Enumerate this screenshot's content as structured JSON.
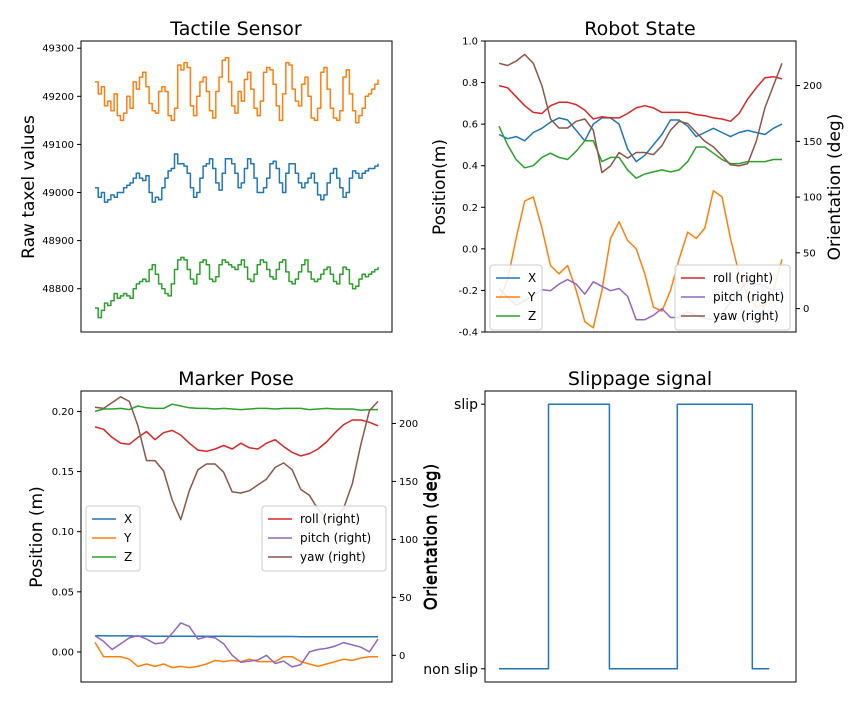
{
  "chart_data": [
    {
      "type": "line",
      "title": "Tactile Sensor",
      "ylabel": "Raw taxel values",
      "xlabel": "",
      "ylim": [
        48710,
        49315
      ],
      "yticks": [
        48800,
        48900,
        49000,
        49100,
        49200,
        49300
      ],
      "show_xticks": false,
      "step": true,
      "series": [
        {
          "color": "#ff7f0e",
          "values": [
            49230,
            49205,
            49220,
            49180,
            49190,
            49170,
            49205,
            49160,
            49150,
            49165,
            49200,
            49175,
            49230,
            49215,
            49240,
            49250,
            49220,
            49185,
            49170,
            49165,
            49210,
            49220,
            49210,
            49160,
            49150,
            49175,
            49265,
            49255,
            49270,
            49260,
            49180,
            49160,
            49200,
            49230,
            49240,
            49210,
            49170,
            49155,
            49210,
            49240,
            49275,
            49280,
            49230,
            49180,
            49165,
            49210,
            49190,
            49235,
            49250,
            49215,
            49175,
            49160,
            49190,
            49250,
            49260,
            49255,
            49225,
            49180,
            49150,
            49205,
            49270,
            49265,
            49215,
            49190,
            49180,
            49225,
            49240,
            49200,
            49155,
            49150,
            49175,
            49250,
            49260,
            49215,
            49175,
            49155,
            49150,
            49170,
            49240,
            49255,
            49205,
            49170,
            49145,
            49160,
            49175,
            49200,
            49205,
            49215,
            49225,
            49235
          ]
        },
        {
          "color": "#1f77b4",
          "values": [
            49010,
            48990,
            49000,
            48980,
            48985,
            48995,
            48990,
            49000,
            49000,
            49010,
            49015,
            49020,
            49030,
            49040,
            49030,
            49025,
            49035,
            49000,
            48980,
            48990,
            48985,
            49010,
            49030,
            49045,
            49050,
            49080,
            49060,
            49060,
            49055,
            49040,
            49010,
            48990,
            49000,
            49030,
            49055,
            49060,
            49070,
            49050,
            49020,
            49005,
            49040,
            49070,
            49070,
            49060,
            49040,
            49010,
            49020,
            49050,
            49070,
            49060,
            49030,
            49000,
            49000,
            49010,
            49030,
            49060,
            49065,
            49050,
            49020,
            49000,
            49040,
            49060,
            49060,
            49040,
            49020,
            49010,
            49020,
            49030,
            49040,
            49020,
            48995,
            48985,
            48995,
            49020,
            49040,
            49050,
            49030,
            49010,
            48990,
            49000,
            49030,
            49045,
            49040,
            49030,
            49040,
            49045,
            49050,
            49050,
            49055,
            49060
          ]
        },
        {
          "color": "#2ca02c",
          "values": [
            48760,
            48740,
            48755,
            48770,
            48765,
            48775,
            48790,
            48780,
            48785,
            48790,
            48785,
            48780,
            48800,
            48810,
            48815,
            48820,
            48815,
            48840,
            48850,
            48830,
            48810,
            48800,
            48790,
            48785,
            48810,
            48840,
            48860,
            48865,
            48860,
            48840,
            48820,
            48810,
            48830,
            48855,
            48860,
            48850,
            48820,
            48815,
            48825,
            48850,
            48860,
            48855,
            48850,
            48845,
            48840,
            48850,
            48860,
            48845,
            48820,
            48815,
            48830,
            48850,
            48860,
            48855,
            48840,
            48825,
            48820,
            48840,
            48855,
            48860,
            48835,
            48815,
            48810,
            48820,
            48835,
            48850,
            48860,
            48835,
            48820,
            48815,
            48820,
            48830,
            48840,
            48845,
            48830,
            48815,
            48810,
            48830,
            48845,
            48840,
            48810,
            48800,
            48805,
            48820,
            48830,
            48825,
            48830,
            48835,
            48840,
            48845
          ]
        }
      ]
    },
    {
      "type": "line",
      "title": "Robot State",
      "ylabel": "Position(m)",
      "ylabel_right": "Orientation (deg)",
      "ylim": [
        -0.4,
        1.0
      ],
      "yticks": [
        -0.4,
        -0.2,
        0.0,
        0.2,
        0.4,
        0.6,
        0.8,
        1.0
      ],
      "ylim_right": [
        -21,
        240
      ],
      "yticks_right": [
        0,
        50,
        100,
        150,
        200
      ],
      "show_xticks": false,
      "legend_left": {
        "placement": "lower-left",
        "entries": [
          {
            "label": "X",
            "color": "#1f77b4"
          },
          {
            "label": "Y",
            "color": "#ff7f0e"
          },
          {
            "label": "Z",
            "color": "#2ca02c"
          }
        ]
      },
      "legend_right": {
        "placement": "lower-right",
        "entries": [
          {
            "label": "roll (right)",
            "color": "#d62728"
          },
          {
            "label": "pitch (right)",
            "color": "#9467bd"
          },
          {
            "label": "yaw (right)",
            "color": "#8c564b"
          }
        ]
      },
      "series": [
        {
          "name": "X",
          "axis": "left",
          "color": "#1f77b4",
          "values": [
            0.55,
            0.53,
            0.54,
            0.52,
            0.56,
            0.58,
            0.61,
            0.63,
            0.62,
            0.57,
            0.52,
            0.6,
            0.63,
            0.63,
            0.6,
            0.48,
            0.42,
            0.45,
            0.5,
            0.55,
            0.62,
            0.62,
            0.59,
            0.54,
            0.56,
            0.58,
            0.56,
            0.54,
            0.56,
            0.57,
            0.56,
            0.55,
            0.58,
            0.6
          ]
        },
        {
          "name": "Y",
          "axis": "left",
          "color": "#ff7f0e",
          "values": [
            -0.25,
            -0.15,
            0.05,
            0.23,
            0.25,
            0.1,
            -0.08,
            -0.12,
            -0.08,
            -0.2,
            -0.35,
            -0.38,
            -0.2,
            0.05,
            0.13,
            0.04,
            0.0,
            -0.12,
            -0.28,
            -0.3,
            -0.2,
            -0.05,
            0.08,
            0.05,
            0.1,
            0.28,
            0.25,
            0.05,
            -0.12,
            -0.22,
            -0.28,
            -0.27,
            -0.2,
            -0.05
          ]
        },
        {
          "name": "Z",
          "axis": "left",
          "color": "#2ca02c",
          "values": [
            0.59,
            0.5,
            0.43,
            0.39,
            0.4,
            0.44,
            0.46,
            0.44,
            0.43,
            0.47,
            0.52,
            0.52,
            0.42,
            0.44,
            0.44,
            0.38,
            0.34,
            0.36,
            0.37,
            0.38,
            0.37,
            0.38,
            0.42,
            0.49,
            0.49,
            0.46,
            0.43,
            0.41,
            0.41,
            0.42,
            0.42,
            0.42,
            0.43,
            0.43
          ]
        },
        {
          "name": "roll (right)",
          "axis": "right",
          "color": "#d62728",
          "values": [
            200,
            198,
            190,
            182,
            176,
            175,
            182,
            185,
            185,
            183,
            178,
            170,
            172,
            171,
            171,
            175,
            180,
            182,
            180,
            176,
            176,
            176,
            176,
            174,
            173,
            171,
            170,
            168,
            175,
            188,
            198,
            207,
            208,
            206
          ]
        },
        {
          "name": "pitch (right)",
          "axis": "right",
          "color": "#9467bd",
          "values": [
            18,
            10,
            3,
            7,
            12,
            17,
            16,
            22,
            26,
            22,
            13,
            24,
            20,
            16,
            18,
            11,
            -10,
            -10,
            -6,
            0,
            -8,
            -8,
            -3,
            -6,
            -9,
            -10,
            -5,
            6,
            15,
            25,
            22,
            20,
            16,
            18
          ]
        },
        {
          "name": "yaw (right)",
          "axis": "right",
          "color": "#8c564b",
          "values": [
            220,
            218,
            222,
            228,
            220,
            200,
            170,
            162,
            162,
            168,
            170,
            160,
            122,
            128,
            140,
            135,
            140,
            140,
            138,
            146,
            160,
            168,
            166,
            158,
            150,
            145,
            137,
            129,
            128,
            130,
            150,
            180,
            200,
            220
          ]
        }
      ]
    },
    {
      "type": "line",
      "title": "Marker Pose",
      "ylabel": "Position (m)",
      "ylabel_right": "Orientation (deg)",
      "ylim": [
        -0.025,
        0.217
      ],
      "yticks": [
        0.0,
        0.05,
        0.1,
        0.15,
        0.2
      ],
      "ylim_right": [
        -23,
        228
      ],
      "yticks_right": [
        0,
        50,
        100,
        150,
        200
      ],
      "show_xticks": false,
      "legend_left": {
        "placement": "center-left",
        "entries": [
          {
            "label": "X",
            "color": "#1f77b4"
          },
          {
            "label": "Y",
            "color": "#ff7f0e"
          },
          {
            "label": "Z",
            "color": "#2ca02c"
          }
        ]
      },
      "legend_right": {
        "placement": "center-right",
        "entries": [
          {
            "label": "roll (right)",
            "color": "#d62728"
          },
          {
            "label": "pitch (right)",
            "color": "#9467bd"
          },
          {
            "label": "yaw (right)",
            "color": "#8c564b"
          }
        ]
      },
      "series": [
        {
          "name": "X",
          "axis": "left",
          "color": "#1f77b4",
          "values": [
            0.0135,
            0.0134,
            0.0133,
            0.0133,
            0.0133,
            0.0132,
            0.0132,
            0.0131,
            0.0131,
            0.013,
            0.013,
            0.013,
            0.013,
            0.013,
            0.013,
            0.013,
            0.0129,
            0.0129,
            0.0129,
            0.0128,
            0.0128,
            0.0128,
            0.0128,
            0.0128,
            0.0127,
            0.0127,
            0.0127,
            0.0127,
            0.0126,
            0.0126,
            0.0126,
            0.0126,
            0.0126,
            0.0126
          ]
        },
        {
          "name": "Y",
          "axis": "left",
          "color": "#ff7f0e",
          "values": [
            0.008,
            -0.004,
            -0.004,
            -0.004,
            -0.006,
            -0.012,
            -0.01,
            -0.012,
            -0.01,
            -0.013,
            -0.012,
            -0.013,
            -0.012,
            -0.01,
            -0.007,
            -0.008,
            -0.007,
            -0.008,
            -0.006,
            -0.008,
            -0.008,
            -0.008,
            -0.004,
            -0.004,
            -0.008,
            -0.01,
            -0.012,
            -0.01,
            -0.008,
            -0.006,
            -0.007,
            -0.005,
            -0.004,
            -0.004
          ]
        },
        {
          "name": "Z",
          "axis": "left",
          "color": "#2ca02c",
          "values": [
            0.2,
            0.202,
            0.202,
            0.2025,
            0.2015,
            0.2045,
            0.203,
            0.2025,
            0.2025,
            0.206,
            0.2045,
            0.203,
            0.2025,
            0.2025,
            0.202,
            0.2025,
            0.202,
            0.2015,
            0.202,
            0.2025,
            0.2025,
            0.202,
            0.2025,
            0.2025,
            0.2025,
            0.2015,
            0.202,
            0.2025,
            0.202,
            0.202,
            0.202,
            0.201,
            0.2015,
            0.2015
          ]
        },
        {
          "name": "roll (right)",
          "axis": "right",
          "color": "#d62728",
          "values": [
            197,
            195,
            188,
            183,
            182,
            188,
            193,
            186,
            192,
            194,
            190,
            183,
            177,
            176,
            178,
            181,
            178,
            183,
            179,
            178,
            183,
            186,
            180,
            175,
            172,
            174,
            178,
            184,
            192,
            199,
            203,
            203,
            201,
            198
          ]
        },
        {
          "name": "pitch (right)",
          "axis": "right",
          "color": "#9467bd",
          "values": [
            17,
            12,
            5,
            10,
            15,
            17,
            14,
            10,
            11,
            19,
            28,
            25,
            14,
            16,
            15,
            10,
            0,
            -6,
            -5,
            -4,
            0,
            -7,
            -5,
            -10,
            -8,
            3,
            5,
            6,
            8,
            11,
            9,
            7,
            3,
            14
          ]
        },
        {
          "name": "yaw (right)",
          "axis": "right",
          "color": "#8c564b",
          "values": [
            214,
            213,
            218,
            223,
            219,
            198,
            168,
            168,
            159,
            134,
            117,
            142,
            160,
            165,
            165,
            158,
            141,
            140,
            142,
            147,
            152,
            162,
            166,
            160,
            143,
            138,
            126,
            118,
            118,
            127,
            148,
            182,
            211,
            219
          ]
        }
      ]
    },
    {
      "type": "line",
      "title": "Slippage signal",
      "ylabel": "Orientation (deg)",
      "xlabel": "",
      "yticklabels": [
        "non slip",
        "slip"
      ],
      "ylim": [
        -0.05,
        1.05
      ],
      "show_xticks": false,
      "series": [
        {
          "color": "#1f77b4",
          "x": [
            0,
            0.175,
            0.175,
            0.39,
            0.39,
            0.63,
            0.63,
            0.895,
            0.895,
            0.955
          ],
          "values": [
            0,
            0,
            1,
            1,
            0,
            0,
            1,
            1,
            0,
            0
          ]
        }
      ]
    }
  ]
}
